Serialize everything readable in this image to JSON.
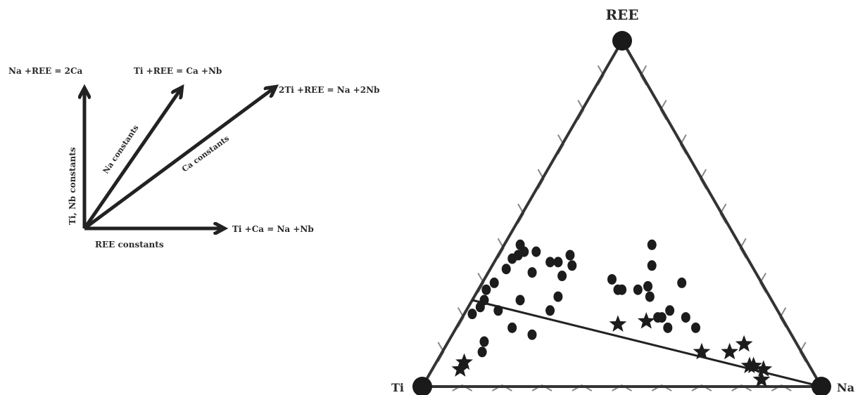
{
  "vectors": {
    "origin_label": "REE constants",
    "vertical_axis_label": "Ti, Nb constants",
    "na_constants_label": "Na constants",
    "ca_constants_label": "Ca constants",
    "eq_vertical": "Na +REE  = 2Ca",
    "eq_na_constants": "Ti +REE  = Ca +Nb",
    "eq_ca_constants": "2Ti +REE  = Na +2Nb",
    "eq_horizontal": "Ti +Ca = Na +Nb"
  },
  "chart_data": {
    "type": "scatter",
    "subtype": "ternary",
    "vertices": {
      "top": "REE",
      "left": "Ti",
      "right": "Na"
    },
    "tick_count": 10,
    "series": [
      {
        "marker": "circle",
        "points": [
          {
            "ti": 0.77,
            "na": 0.02,
            "ree": 0.21
          },
          {
            "ti": 0.74,
            "na": 0.03,
            "ree": 0.23
          },
          {
            "ti": 0.72,
            "na": 0.03,
            "ree": 0.25
          },
          {
            "ti": 0.7,
            "na": 0.02,
            "ree": 0.28
          },
          {
            "ti": 0.67,
            "na": 0.03,
            "ree": 0.3
          },
          {
            "ti": 0.62,
            "na": 0.04,
            "ree": 0.34
          },
          {
            "ti": 0.59,
            "na": 0.04,
            "ree": 0.37
          },
          {
            "ti": 0.57,
            "na": 0.05,
            "ree": 0.38
          },
          {
            "ti": 0.55,
            "na": 0.06,
            "ree": 0.39
          },
          {
            "ti": 0.55,
            "na": 0.04,
            "ree": 0.41
          },
          {
            "ti": 0.56,
            "na": 0.11,
            "ree": 0.33
          },
          {
            "ti": 0.52,
            "na": 0.09,
            "ree": 0.39
          },
          {
            "ti": 0.5,
            "na": 0.14,
            "ree": 0.36
          },
          {
            "ti": 0.48,
            "na": 0.16,
            "ree": 0.36
          },
          {
            "ti": 0.49,
            "na": 0.19,
            "ree": 0.32
          },
          {
            "ti": 0.45,
            "na": 0.2,
            "ree": 0.35
          },
          {
            "ti": 0.44,
            "na": 0.18,
            "ree": 0.38
          },
          {
            "ti": 0.53,
            "na": 0.21,
            "ree": 0.26
          },
          {
            "ti": 0.57,
            "na": 0.21,
            "ree": 0.22
          },
          {
            "ti": 0.63,
            "na": 0.12,
            "ree": 0.25
          },
          {
            "ti": 0.7,
            "na": 0.08,
            "ree": 0.22
          },
          {
            "ti": 0.69,
            "na": 0.14,
            "ree": 0.17
          },
          {
            "ti": 0.78,
            "na": 0.09,
            "ree": 0.13
          },
          {
            "ti": 0.8,
            "na": 0.1,
            "ree": 0.1
          },
          {
            "ti": 0.65,
            "na": 0.2,
            "ree": 0.15
          },
          {
            "ti": 0.36,
            "na": 0.36,
            "ree": 0.28
          },
          {
            "ti": 0.37,
            "na": 0.35,
            "ree": 0.28
          },
          {
            "ti": 0.37,
            "na": 0.32,
            "ree": 0.31
          },
          {
            "ti": 0.29,
            "na": 0.42,
            "ree": 0.29
          },
          {
            "ti": 0.25,
            "na": 0.4,
            "ree": 0.35
          },
          {
            "ti": 0.22,
            "na": 0.37,
            "ree": 0.41
          },
          {
            "ti": 0.32,
            "na": 0.4,
            "ree": 0.28
          },
          {
            "ti": 0.3,
            "na": 0.44,
            "ree": 0.26
          },
          {
            "ti": 0.31,
            "na": 0.49,
            "ree": 0.2
          },
          {
            "ti": 0.2,
            "na": 0.5,
            "ree": 0.3
          },
          {
            "ti": 0.27,
            "na": 0.51,
            "ree": 0.22
          },
          {
            "ti": 0.3,
            "na": 0.5,
            "ree": 0.2
          },
          {
            "ti": 0.24,
            "na": 0.56,
            "ree": 0.2
          },
          {
            "ti": 0.23,
            "na": 0.6,
            "ree": 0.17
          },
          {
            "ti": 0.3,
            "na": 0.53,
            "ree": 0.17
          }
        ]
      },
      {
        "marker": "star",
        "points": [
          {
            "ti": 0.86,
            "na": 0.07,
            "ree": 0.07
          },
          {
            "ti": 0.88,
            "na": 0.07,
            "ree": 0.05
          },
          {
            "ti": 0.42,
            "na": 0.4,
            "ree": 0.18
          },
          {
            "ti": 0.31,
            "na": 0.42,
            "ree": 0.17
          },
          {
            "ti": 0.25,
            "na": 0.65,
            "ree": 0.1
          },
          {
            "ti": 0.14,
            "na": 0.8,
            "ree": 0.06
          },
          {
            "ti": 0.13,
            "na": 0.73,
            "ree": 0.12
          },
          {
            "ti": 0.18,
            "na": 0.72,
            "ree": 0.1
          },
          {
            "ti": 0.15,
            "na": 0.79,
            "ree": 0.06
          },
          {
            "ti": 0.14,
            "na": 0.84,
            "ree": 0.02
          },
          {
            "ti": 0.12,
            "na": 0.83,
            "ree": 0.05
          }
        ]
      }
    ],
    "trend_line": [
      {
        "ti": 0.75,
        "na": 0.0,
        "ree": 0.25
      },
      {
        "ti": 0.0,
        "na": 1.0,
        "ree": 0.0
      }
    ]
  }
}
